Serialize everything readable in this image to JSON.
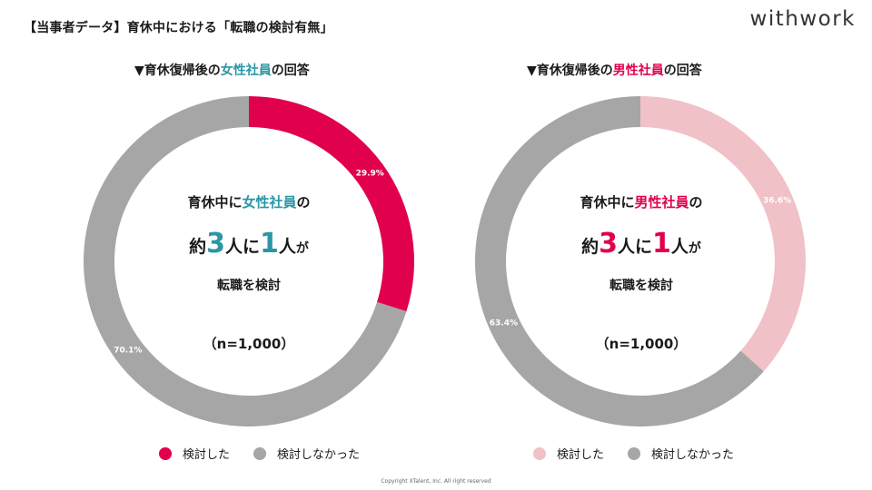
{
  "page_title": "【当事者データ】育休中における「転職の検討有無」",
  "logo_text": "withwork",
  "copyright": "Copyright XTalent, Inc. All right reserved",
  "colors": {
    "female_considered": "#e0004d",
    "male_considered": "#f0c1c7",
    "not_considered": "#a6a6a6",
    "teal": "#2a96a5",
    "pink_text": "#e0004d"
  },
  "panels": [
    {
      "heading_prefix": "▼育休復帰後の",
      "heading_highlight": "女性社員",
      "heading_suffix": "の回答",
      "center_prefix": "育休中に",
      "center_highlight": "女性社員",
      "center_suffix": "の",
      "ratio_pre": "約",
      "ratio_num1": "3",
      "ratio_mid": "人に",
      "ratio_num2": "1",
      "ratio_post1": "人",
      "ratio_post2": "が",
      "action": "転職を検討",
      "sample": "（n=1,000）"
    },
    {
      "heading_prefix": "▼育休復帰後の",
      "heading_highlight": "男性社員",
      "heading_suffix": "の回答",
      "center_prefix": "育休中に",
      "center_highlight": "男性社員",
      "center_suffix": "の",
      "ratio_pre": "約",
      "ratio_num1": "3",
      "ratio_mid": "人に",
      "ratio_num2": "1",
      "ratio_post1": "人",
      "ratio_post2": "が",
      "action": "転職を検討",
      "sample": "（n=1,000）"
    }
  ],
  "chart_data": [
    {
      "type": "pie",
      "categories": [
        "検討した",
        "検討しなかった"
      ],
      "values": [
        29.9,
        70.1
      ],
      "labels": [
        "29.9%",
        "70.1%"
      ],
      "colors": [
        "#e0004d",
        "#a6a6a6"
      ],
      "legend_position": "bottom"
    },
    {
      "type": "pie",
      "categories": [
        "検討した",
        "検討しなかった"
      ],
      "values": [
        36.6,
        63.4
      ],
      "labels": [
        "36.6%",
        "63.4%"
      ],
      "colors": [
        "#f0c1c7",
        "#a6a6a6"
      ],
      "legend_position": "bottom"
    }
  ]
}
